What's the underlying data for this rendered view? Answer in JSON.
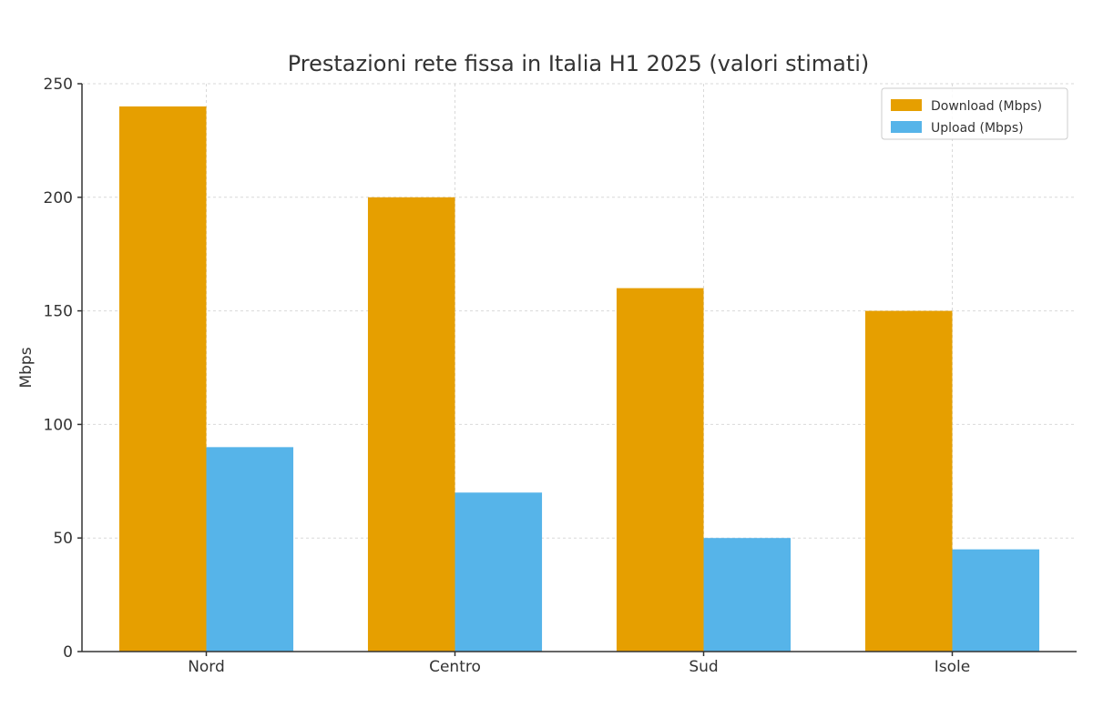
{
  "chart_data": {
    "type": "bar",
    "title": "Prestazioni rete fissa in Italia H1 2025 (valori stimati)",
    "xlabel": "",
    "ylabel": "Mbps",
    "categories": [
      "Nord",
      "Centro",
      "Sud",
      "Isole"
    ],
    "series": [
      {
        "name": "Download (Mbps)",
        "values": [
          240,
          200,
          160,
          150
        ],
        "color": "#E69F00"
      },
      {
        "name": "Upload (Mbps)",
        "values": [
          90,
          70,
          50,
          45
        ],
        "color": "#56B4E9"
      }
    ],
    "ylim": [
      0,
      250
    ],
    "yticks": [
      0,
      50,
      100,
      150,
      200,
      250
    ],
    "grid": true,
    "legend_position": "top-right"
  }
}
